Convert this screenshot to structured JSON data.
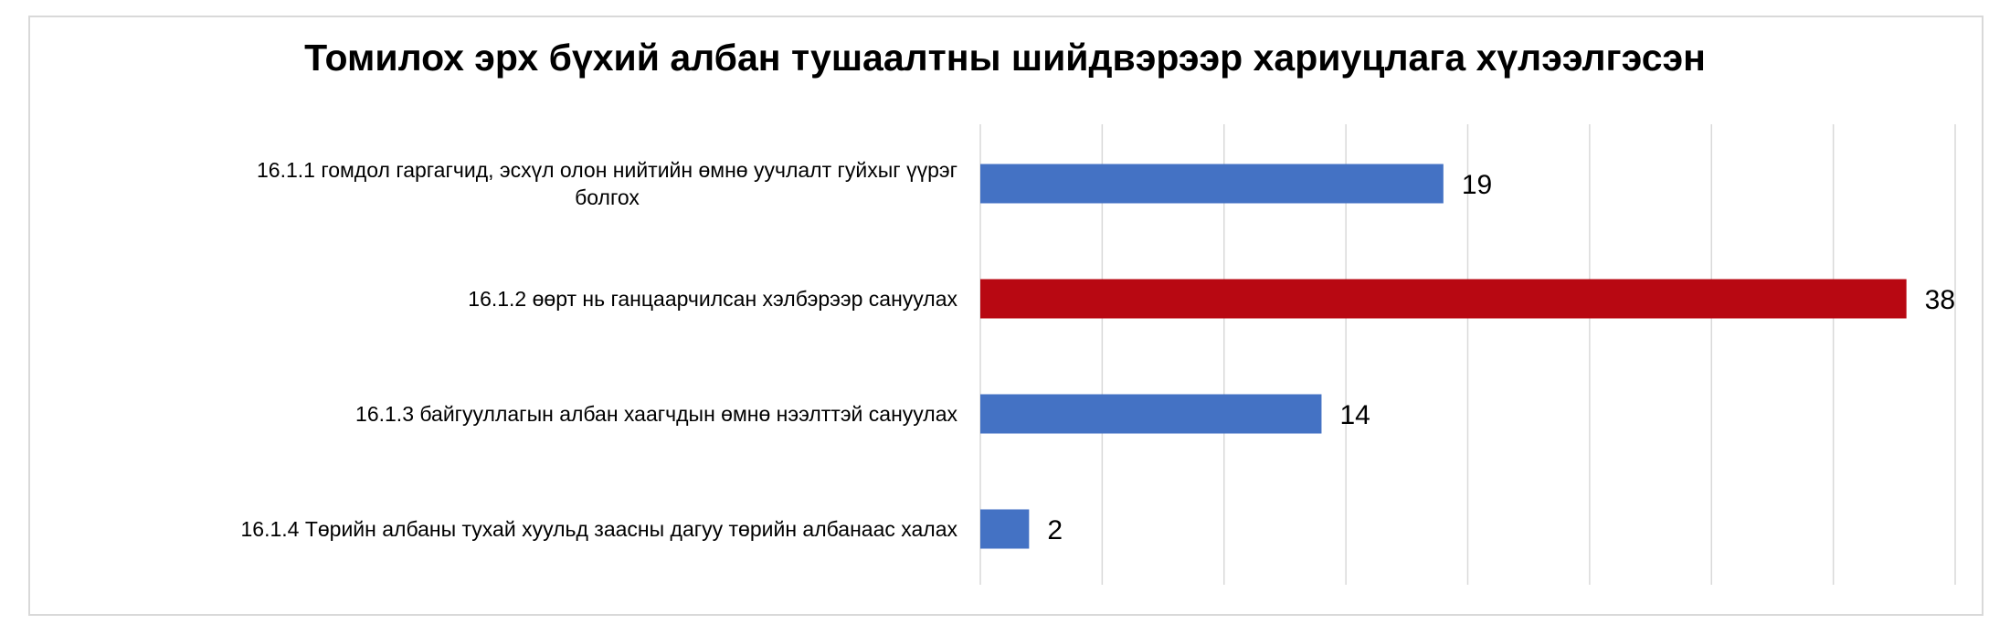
{
  "chart_data": {
    "type": "bar",
    "orientation": "horizontal",
    "title": "Томилох эрх бүхий албан тушаалтны шийдвэрээр хариуцлага хүлээлгэсэн",
    "categories": [
      [
        "16.1.1 гомдол гаргагчид, эсхүл олон нийтийн өмнө уучлалт гуйхыг үүрэг",
        "болгох"
      ],
      [
        "16.1.2 өөрт нь ганцаарчилсан хэлбэрээр сануулах"
      ],
      [
        "16.1.3 байгууллагын албан хаагчдын өмнө нээлттэй сануулах"
      ],
      [
        "16.1.4 Төрийн албаны тухай хуульд заасны дагуу төрийн албанаас халах"
      ]
    ],
    "values": [
      19,
      38,
      14,
      2
    ],
    "data_labels": [
      "19",
      "38",
      "14",
      "2"
    ],
    "bar_colors": [
      "#4472C4",
      "#B80812",
      "#4472C4",
      "#4472C4"
    ],
    "xlim": [
      0,
      40
    ],
    "grid_step": 5,
    "grid": "vertical",
    "value_axis_labels": "hidden",
    "legend": "none"
  }
}
